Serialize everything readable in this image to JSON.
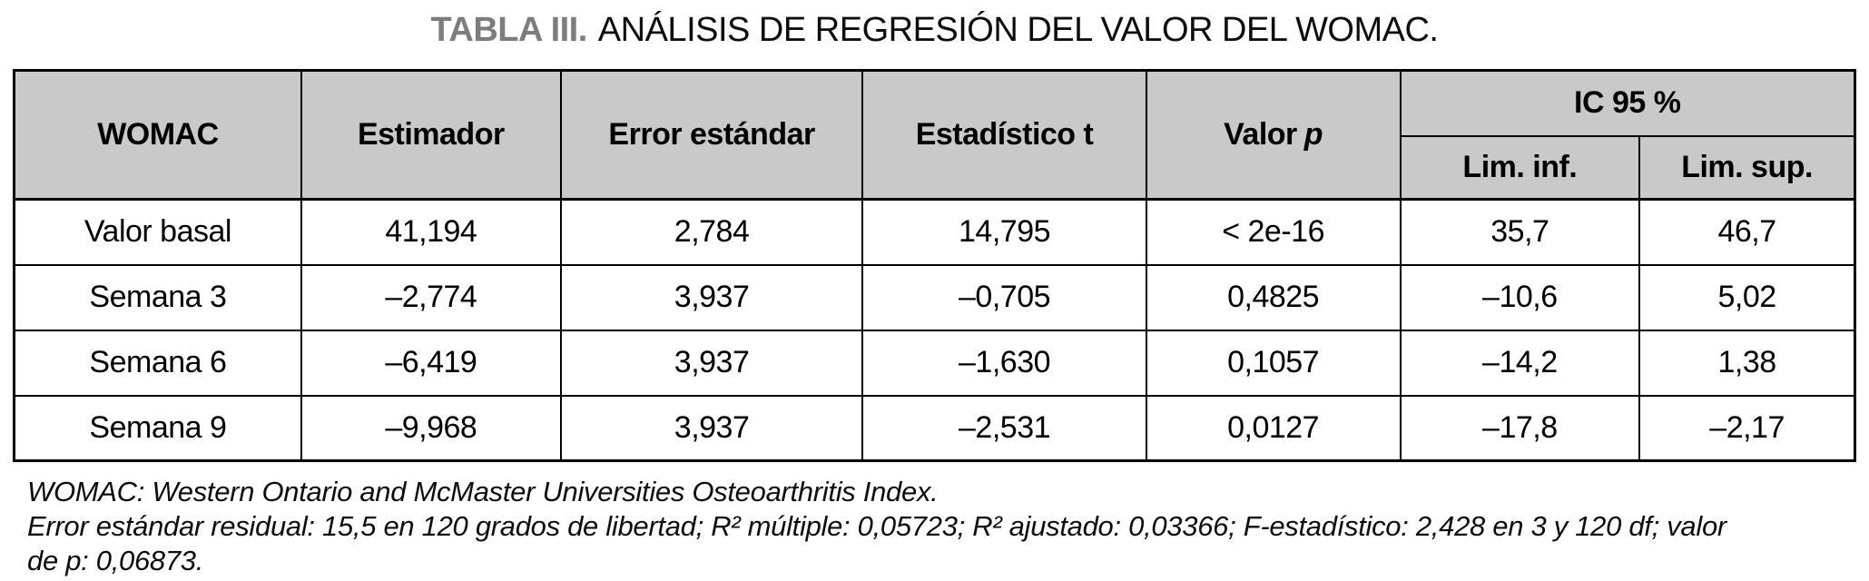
{
  "title": {
    "label": "TABLA III.",
    "text": "ANÁLISIS DE REGRESIÓN DEL VALOR DEL WOMAC."
  },
  "colors": {
    "header_bg": "#c9c9c9",
    "border": "#000000",
    "title_label_gray": "#7d7d7d"
  },
  "chart_data": {
    "type": "table",
    "title": "TABLA III. ANÁLISIS DE REGRESIÓN DEL VALOR DEL WOMAC.",
    "columns": [
      "WOMAC",
      "Estimador",
      "Error estándar",
      "Estadístico t",
      "Valor p",
      "IC 95 % Lim. inf.",
      "IC 95 % Lim. sup."
    ],
    "rows": [
      [
        "Valor basal",
        "41,194",
        "2,784",
        "14,795",
        "< 2e-16",
        "35,7",
        "46,7"
      ],
      [
        "Semana 3",
        "–2,774",
        "3,937",
        "–0,705",
        "0,4825",
        "–10,6",
        "5,02"
      ],
      [
        "Semana 6",
        "–6,419",
        "3,937",
        "–1,630",
        "0,1057",
        "–14,2",
        "1,38"
      ],
      [
        "Semana 9",
        "–9,968",
        "3,937",
        "–2,531",
        "0,0127",
        "–17,8",
        "–2,17"
      ]
    ]
  },
  "table": {
    "headers": {
      "womac": "WOMAC",
      "estimador": "Estimador",
      "error_estandar": "Error estándar",
      "estadistico_t": "Estadístico t",
      "valor_p_prefix": "Valor",
      "valor_p_symbol": "p",
      "ic95": "IC 95 %",
      "lim_inf": "Lim. inf.",
      "lim_sup": "Lim. sup."
    },
    "rows": [
      {
        "label": "Valor basal",
        "cells": [
          "41,194",
          "2,784",
          "14,795",
          "< 2e-16",
          "35,7",
          "46,7"
        ]
      },
      {
        "label": "Semana 3",
        "cells": [
          "–2,774",
          "3,937",
          "–0,705",
          "0,4825",
          "–10,6",
          "5,02"
        ]
      },
      {
        "label": "Semana 6",
        "cells": [
          "–6,419",
          "3,937",
          "–1,630",
          "0,1057",
          "–14,2",
          "1,38"
        ]
      },
      {
        "label": "Semana 9",
        "cells": [
          "–9,968",
          "3,937",
          "–2,531",
          "0,0127",
          "–17,8",
          "–2,17"
        ]
      }
    ]
  },
  "footnotes": {
    "line1": "WOMAC: Western Ontario and McMaster Universities Osteoarthritis Index.",
    "line2": "Error estándar residual: 15,5 en 120 grados de libertad; R² múltiple: 0,05723; R² ajustado: 0,03366; F-estadístico: 2,428 en 3 y 120 df; valor de p: 0,06873."
  }
}
